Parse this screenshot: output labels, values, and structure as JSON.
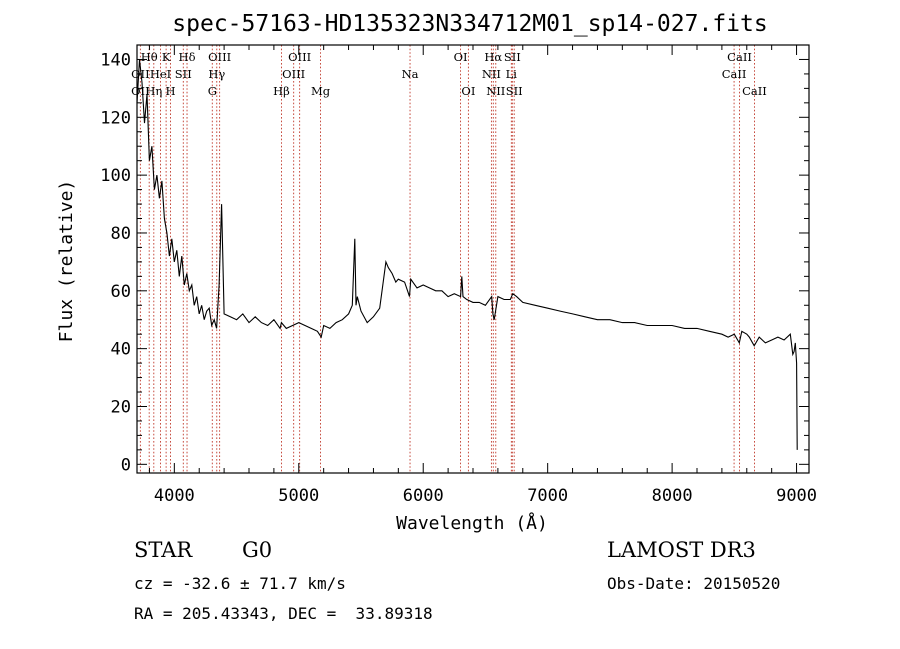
{
  "chart_data": {
    "type": "line",
    "title": "spec-57163-HD135323N334712M01_sp14-027.fits",
    "xlabel": "Wavelength (Å)",
    "ylabel": "Flux (relative)",
    "xlim": [
      3700,
      9100
    ],
    "ylim": [
      -3,
      145
    ],
    "xticks": [
      4000,
      5000,
      6000,
      7000,
      8000,
      9000
    ],
    "yticks": [
      0,
      20,
      40,
      60,
      80,
      100,
      120,
      140
    ],
    "grid": false,
    "series": [
      {
        "x": [
          3700,
          3720,
          3740,
          3760,
          3780,
          3800,
          3820,
          3840,
          3860,
          3880,
          3900,
          3920,
          3940,
          3960,
          3980,
          4000,
          4020,
          4040,
          4060,
          4080,
          4100,
          4120,
          4140,
          4160,
          4180,
          4200,
          4220,
          4240,
          4260,
          4280,
          4300,
          4320,
          4340,
          4360,
          4380,
          4400,
          4450,
          4500,
          4550,
          4600,
          4650,
          4700,
          4750,
          4800,
          4850,
          4860,
          4900,
          4950,
          5000,
          5050,
          5100,
          5150,
          5180,
          5200,
          5250,
          5300,
          5350,
          5400,
          5430,
          5450,
          5460,
          5470,
          5500,
          5550,
          5600,
          5650,
          5700,
          5720,
          5750,
          5780,
          5800,
          5850,
          5890,
          5900,
          5950,
          6000,
          6050,
          6100,
          6150,
          6200,
          6250,
          6300,
          6310,
          6320,
          6350,
          6400,
          6450,
          6500,
          6550,
          6560,
          6570,
          6600,
          6650,
          6700,
          6720,
          6750,
          6800,
          6900,
          7000,
          7100,
          7200,
          7300,
          7400,
          7500,
          7600,
          7700,
          7800,
          7900,
          8000,
          8100,
          8200,
          8300,
          8400,
          8450,
          8500,
          8540,
          8560,
          8600,
          8620,
          8660,
          8700,
          8750,
          8800,
          8850,
          8900,
          8950,
          8970,
          8980,
          8990,
          9000,
          9005
        ],
        "y": [
          125,
          140,
          132,
          118,
          128,
          105,
          110,
          95,
          100,
          92,
          98,
          85,
          80,
          72,
          78,
          70,
          74,
          65,
          72,
          62,
          66,
          60,
          62,
          55,
          58,
          52,
          55,
          50,
          53,
          54,
          48,
          50,
          47,
          62,
          90,
          52,
          51,
          50,
          52,
          49,
          51,
          49,
          48,
          50,
          47,
          49,
          47,
          48,
          49,
          48,
          47,
          46,
          44,
          48,
          47,
          49,
          50,
          52,
          55,
          78,
          55,
          58,
          53,
          49,
          51,
          54,
          70,
          68,
          66,
          63,
          64,
          63,
          58,
          64,
          61,
          62,
          61,
          60,
          60,
          58,
          59,
          58,
          65,
          58,
          57,
          56,
          56,
          55,
          58,
          52,
          50,
          58,
          57,
          57,
          59,
          58,
          56,
          55,
          54,
          53,
          52,
          51,
          50,
          50,
          49,
          49,
          48,
          48,
          48,
          47,
          47,
          46,
          45,
          44,
          45,
          42,
          46,
          45,
          44,
          41,
          44,
          42,
          43,
          44,
          43,
          45,
          38,
          39,
          42,
          35,
          5
        ]
      }
    ],
    "spectral_lines": [
      {
        "label": "OII",
        "x": 3727,
        "row": 1
      },
      {
        "label": "OII",
        "x": 3727,
        "row": 2
      },
      {
        "label": "Hθ",
        "x": 3798,
        "row": 0
      },
      {
        "label": "Hη",
        "x": 3835,
        "row": 2
      },
      {
        "label": "HeI",
        "x": 3889,
        "row": 1
      },
      {
        "label": "K",
        "x": 3934,
        "row": 0
      },
      {
        "label": "H",
        "x": 3969,
        "row": 2
      },
      {
        "label": "SII",
        "x": 4072,
        "row": 1
      },
      {
        "label": "Hδ",
        "x": 4102,
        "row": 0
      },
      {
        "label": "G",
        "x": 4305,
        "row": 2
      },
      {
        "label": "Hγ",
        "x": 4341,
        "row": 1
      },
      {
        "label": "OIII",
        "x": 4364,
        "row": 0
      },
      {
        "label": "Hβ",
        "x": 4861,
        "row": 2
      },
      {
        "label": "OIII",
        "x": 4959,
        "row": 1
      },
      {
        "label": "OIII",
        "x": 5007,
        "row": 0
      },
      {
        "label": "Mg",
        "x": 5175,
        "row": 2
      },
      {
        "label": "Na",
        "x": 5894,
        "row": 1
      },
      {
        "label": "OI",
        "x": 6300,
        "row": 0
      },
      {
        "label": "OI",
        "x": 6363,
        "row": 2
      },
      {
        "label": "NII",
        "x": 6548,
        "row": 1
      },
      {
        "label": "Hα",
        "x": 6563,
        "row": 0
      },
      {
        "label": "NII",
        "x": 6583,
        "row": 2
      },
      {
        "label": "Li",
        "x": 6708,
        "row": 1
      },
      {
        "label": "SII",
        "x": 6716,
        "row": 0
      },
      {
        "label": "SII",
        "x": 6731,
        "row": 2
      },
      {
        "label": "CaII",
        "x": 8498,
        "row": 1
      },
      {
        "label": "CaII",
        "x": 8542,
        "row": 0
      },
      {
        "label": "CaII",
        "x": 8662,
        "row": 2
      }
    ],
    "line_color": "#000000",
    "marker_color": "#c0392b"
  },
  "info": {
    "object_class": "STAR",
    "subclass": "G0",
    "survey": "LAMOST DR3",
    "redshift_text": "cz = -32.6 ± 71.7 km/s",
    "obs_date": "Obs-Date: 20150520",
    "coords": "RA = 205.43343, DEC =  33.89318"
  }
}
